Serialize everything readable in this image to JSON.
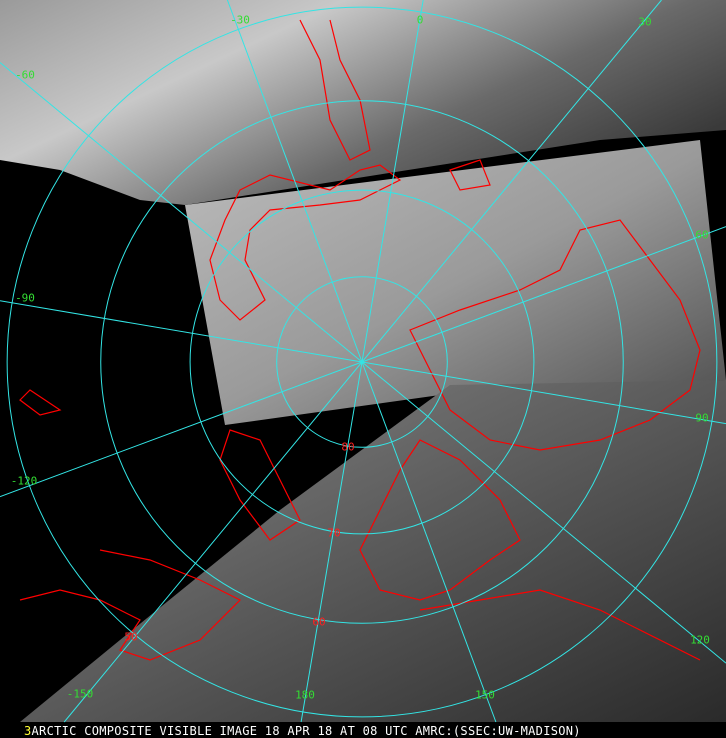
{
  "caption": {
    "frame_number": "3",
    "text": "ARCTIC COMPOSITE VISIBLE IMAGE 18 APR 18 AT 08 UTC AMRC:(SSEC:UW-MADISON)"
  },
  "map": {
    "projection": "polar stereographic, north pole centered",
    "grid_color": "#33e5e5",
    "coastline_color": "#ff0000",
    "latitude_circles": [
      80,
      70,
      60,
      50
    ],
    "longitude_labels": [
      "-30",
      "0",
      "30",
      "-60",
      "60",
      "-90",
      "90",
      "-120",
      "120",
      "-150",
      "150",
      "180"
    ],
    "latitude_labels": [
      "80",
      "70",
      "60",
      "50"
    ]
  }
}
